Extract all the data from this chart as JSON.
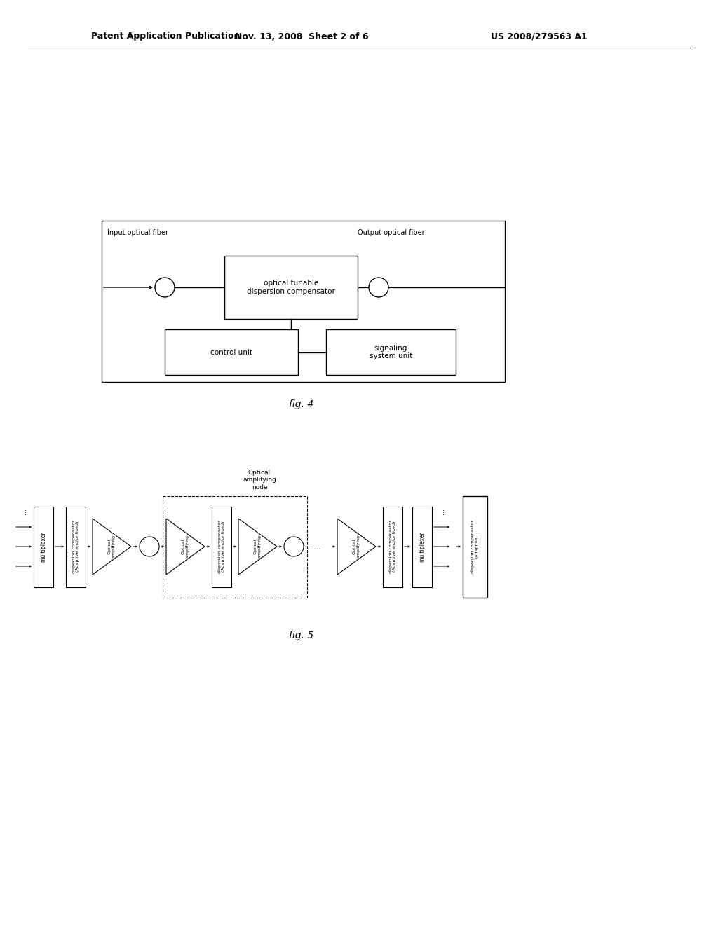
{
  "title_left": "Patent Application Publication",
  "title_mid": "Nov. 13, 2008  Sheet 2 of 6",
  "title_right": "US 2008/279563 A1",
  "fig4_label": "fig. 4",
  "fig5_label": "fig. 5",
  "bg_color": "#ffffff",
  "fig4": {
    "input_label": "Input optical fiber",
    "output_label": "Output optical fiber",
    "comp_box_label": "optical tunable\ndispersion compensator",
    "control_box_label": "control unit",
    "signal_box_label": "signaling\nsystem unit"
  },
  "fig5": {
    "amp_label": "Optical\namplifying",
    "node_label": "Optical\namplifying\nnode",
    "mux_label": "multiplexer",
    "dc_fixed_label": "dispersion compensator\n(Adaptive and/or fixed)",
    "dc_adaptive_label": "dispersion compensator\n(Adaptive)",
    "dots": "..."
  }
}
